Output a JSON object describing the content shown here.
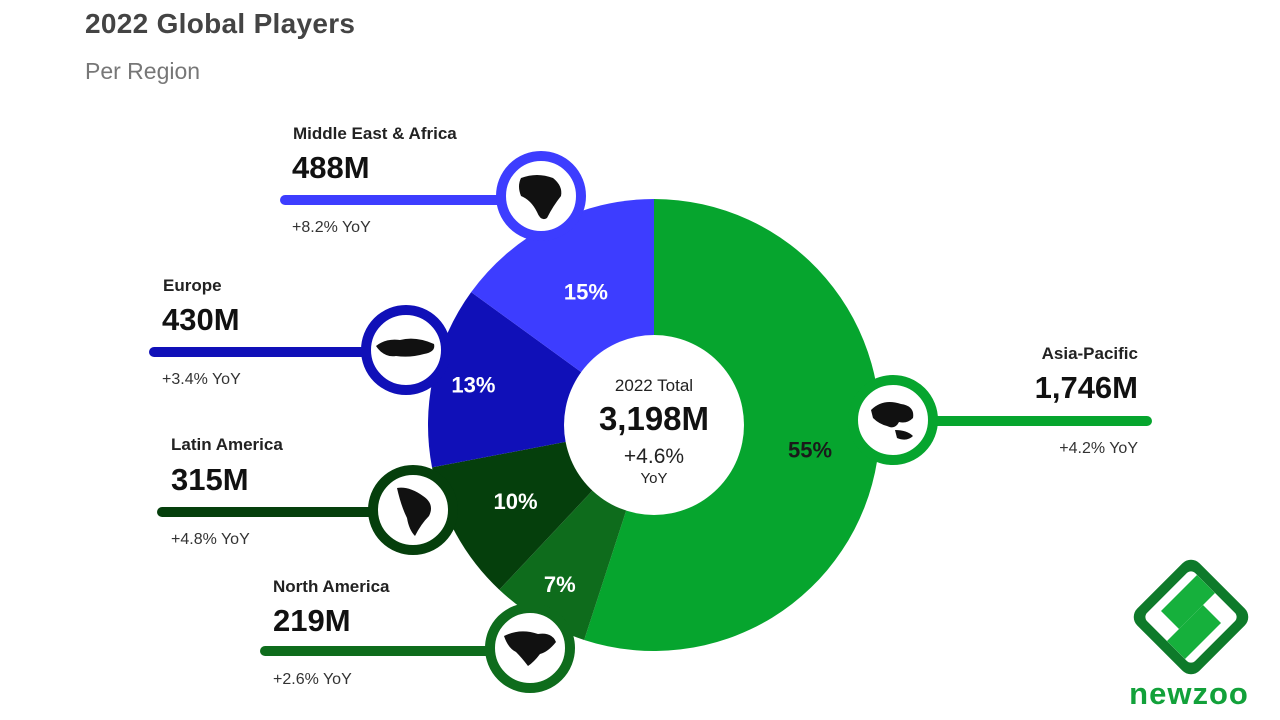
{
  "header": {
    "title": "2022 Global Players",
    "subtitle": "Per Region"
  },
  "center": {
    "label": "2022 Total",
    "value": "3,198M",
    "yoy_value": "+4.6%",
    "yoy_unit": "YoY"
  },
  "regions": [
    {
      "key": "asia",
      "name": "Asia-Pacific",
      "players": "1,746M",
      "yoy": "+4.2% YoY",
      "share": "55%",
      "icon": "asia-pacific-map-icon"
    },
    {
      "key": "na",
      "name": "North America",
      "players": "219M",
      "yoy": "+2.6% YoY",
      "share": "7%",
      "icon": "north-america-map-icon"
    },
    {
      "key": "latam",
      "name": "Latin America",
      "players": "315M",
      "yoy": "+4.8% YoY",
      "share": "10%",
      "icon": "latin-america-map-icon"
    },
    {
      "key": "europe",
      "name": "Europe",
      "players": "430M",
      "yoy": "+3.4% YoY",
      "share": "13%",
      "icon": "europe-map-icon"
    },
    {
      "key": "mea",
      "name": "Middle East & Africa",
      "players": "488M",
      "yoy": "+8.2% YoY",
      "share": "15%",
      "icon": "africa-map-icon"
    }
  ],
  "colors": {
    "asia": "#06a52e",
    "na": "#0e6c1c",
    "latam": "#053f0c",
    "europe": "#1010b8",
    "mea": "#3d3dff"
  },
  "brand": {
    "name": "newzoo",
    "logo_icon": "newzoo-logo-icon"
  },
  "chart_data": {
    "type": "pie",
    "title": "2022 Global Players",
    "subtitle": "Per Region",
    "categories": [
      "Asia-Pacific",
      "North America",
      "Latin America",
      "Europe",
      "Middle East & Africa"
    ],
    "values": [
      55,
      7,
      10,
      13,
      15
    ],
    "players_millions": [
      1746,
      219,
      315,
      430,
      488
    ],
    "yoy_percent": [
      4.2,
      2.6,
      4.8,
      3.4,
      8.2
    ],
    "total_millions": 3198,
    "total_yoy_percent": 4.6
  }
}
